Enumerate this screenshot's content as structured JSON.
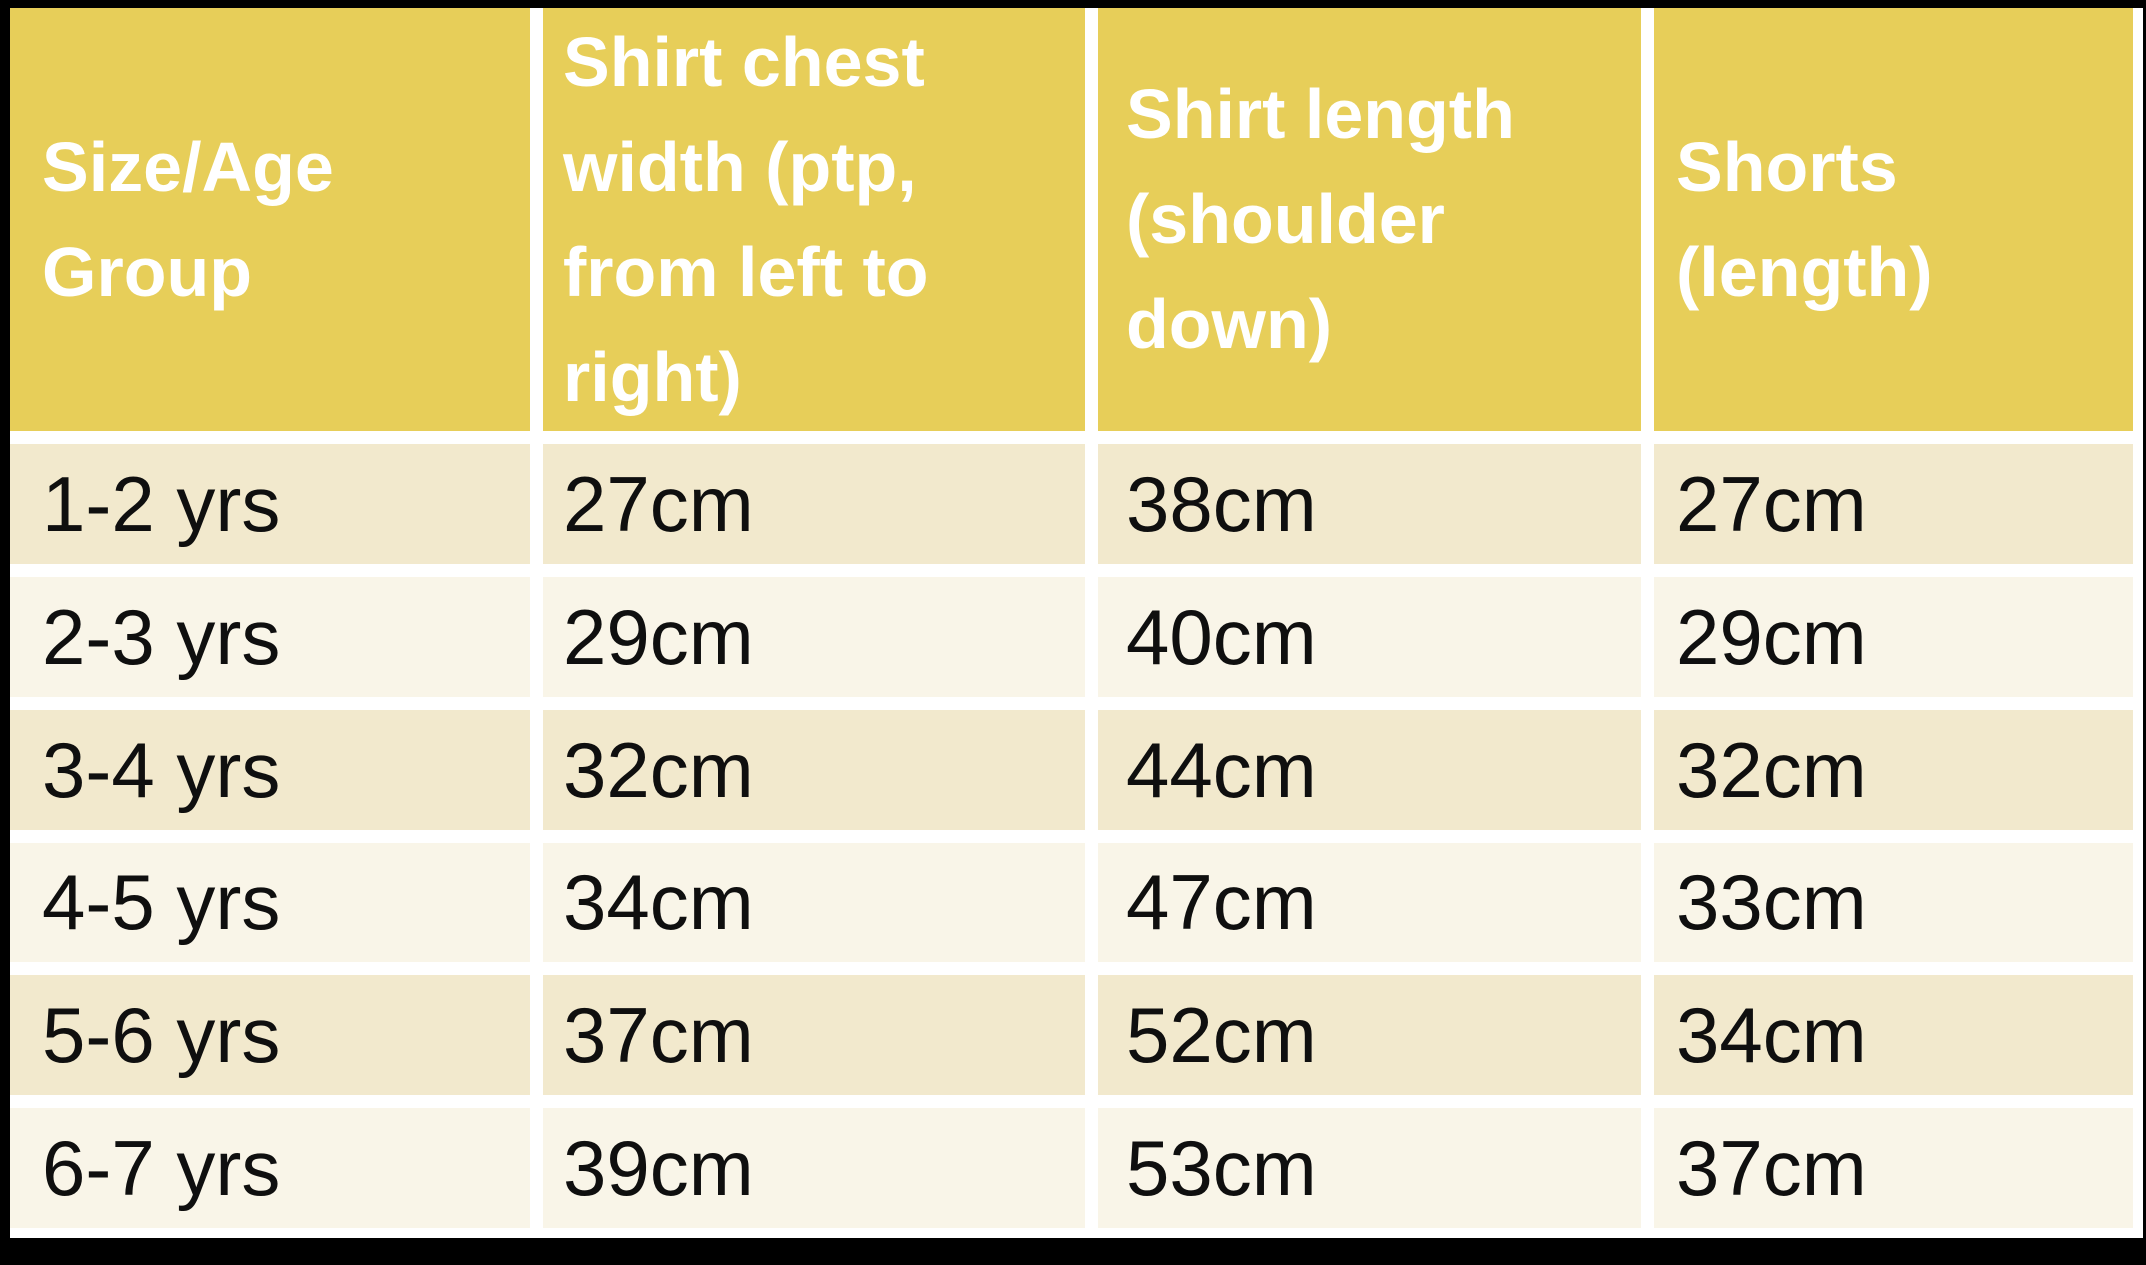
{
  "table": {
    "headers": [
      "Size/Age Group",
      "Shirt chest width (ptp, from left to right)",
      "Shirt length (shoulder down)",
      "Shorts (length)"
    ],
    "rows": [
      [
        "1-2 yrs",
        "27cm",
        "38cm",
        "27cm"
      ],
      [
        "2-3 yrs",
        "29cm",
        "40cm",
        "29cm"
      ],
      [
        "3-4 yrs",
        "32cm",
        "44cm",
        "32cm"
      ],
      [
        "4-5 yrs",
        "34cm",
        "47cm",
        "33cm"
      ],
      [
        "5-6 yrs",
        "37cm",
        "52cm",
        "34cm"
      ],
      [
        "6-7 yrs",
        "39cm",
        "53cm",
        "37cm"
      ]
    ]
  },
  "chart_data": {
    "type": "table",
    "columns": [
      "Size/Age Group",
      "Shirt chest width (ptp, from left to right)",
      "Shirt length (shoulder down)",
      "Shorts (length)"
    ],
    "rows": [
      {
        "size_age_group": "1-2 yrs",
        "shirt_chest_width_cm": 27,
        "shirt_length_cm": 38,
        "shorts_length_cm": 27
      },
      {
        "size_age_group": "2-3 yrs",
        "shirt_chest_width_cm": 29,
        "shirt_length_cm": 40,
        "shorts_length_cm": 29
      },
      {
        "size_age_group": "3-4 yrs",
        "shirt_chest_width_cm": 32,
        "shirt_length_cm": 44,
        "shorts_length_cm": 32
      },
      {
        "size_age_group": "4-5 yrs",
        "shirt_chest_width_cm": 34,
        "shirt_length_cm": 47,
        "shorts_length_cm": 33
      },
      {
        "size_age_group": "5-6 yrs",
        "shirt_chest_width_cm": 37,
        "shirt_length_cm": 52,
        "shorts_length_cm": 34
      },
      {
        "size_age_group": "6-7 yrs",
        "shirt_chest_width_cm": 39,
        "shirt_length_cm": 53,
        "shorts_length_cm": 37
      }
    ]
  },
  "colors": {
    "header_background": "#e7ce59",
    "header_text": "#ffffff",
    "row_odd_background": "#f2e9cd",
    "row_even_background": "#f9f5e8",
    "data_text": "#0f0f0f",
    "cell_gap": "#ffffff",
    "outer_border": "#000000"
  }
}
